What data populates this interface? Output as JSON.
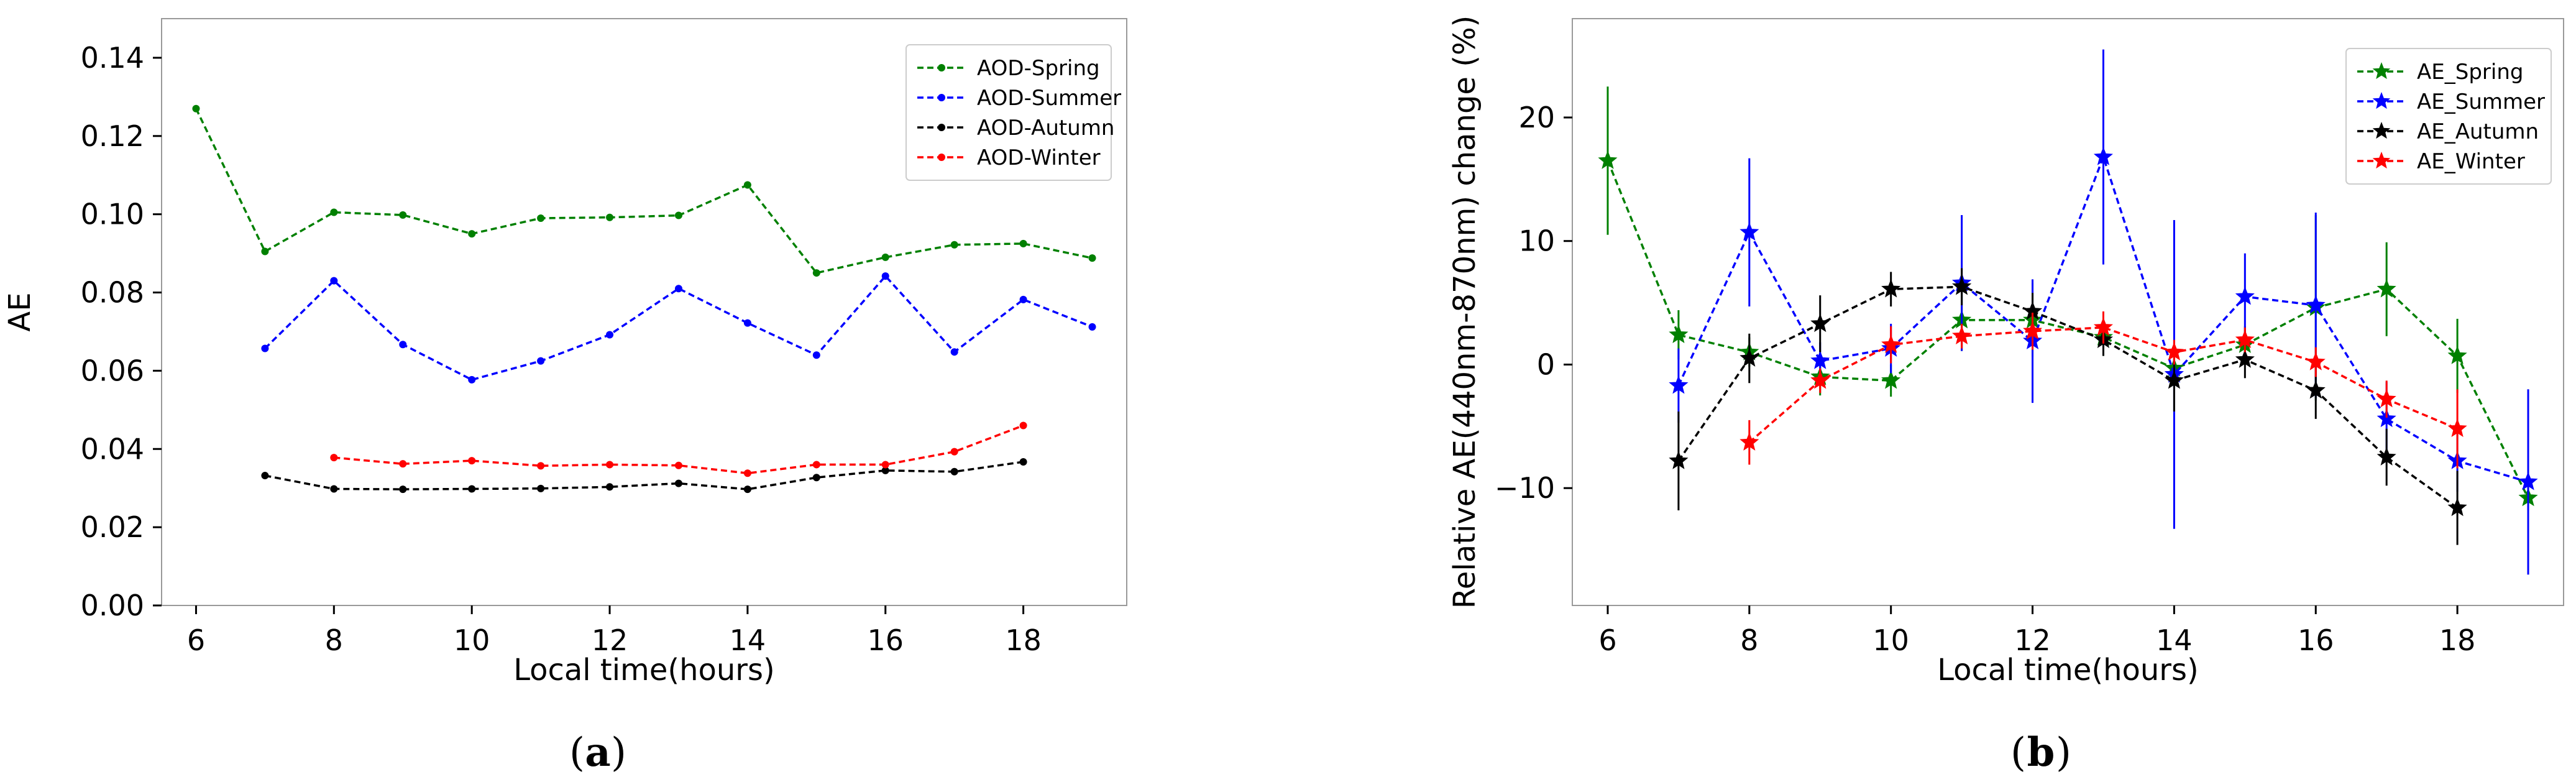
{
  "panels": [
    {
      "caption_label": "a",
      "legend_position": "top-right"
    },
    {
      "caption_label": "b",
      "legend_position": "top-right"
    }
  ],
  "chart_data": [
    {
      "type": "line",
      "title": "",
      "xlabel": "Local time(hours)",
      "ylabel": "AE",
      "xlim": [
        5.5,
        19.5
      ],
      "ylim": [
        0.0,
        0.15
      ],
      "xticks": [
        6,
        8,
        10,
        12,
        14,
        16,
        18
      ],
      "yticks": [
        0.0,
        0.02,
        0.04,
        0.06,
        0.08,
        0.1,
        0.12,
        0.14
      ],
      "ytick_labels": [
        "0.00",
        "0.02",
        "0.04",
        "0.06",
        "0.08",
        "0.10",
        "0.12",
        "0.14"
      ],
      "grid": false,
      "legend_position": "top-right",
      "series": [
        {
          "name": "AOD-Spring",
          "color": "#008000",
          "marker": "dot",
          "x": [
            6,
            7,
            8,
            9,
            10,
            11,
            12,
            13,
            14,
            15,
            16,
            17,
            18,
            19
          ],
          "y": [
            0.127,
            0.0905,
            0.1005,
            0.0998,
            0.095,
            0.099,
            0.0992,
            0.0997,
            0.1075,
            0.085,
            0.089,
            0.0922,
            0.0925,
            0.0888
          ]
        },
        {
          "name": "AOD-Summer",
          "color": "#0000ff",
          "marker": "dot",
          "x": [
            7,
            8,
            9,
            10,
            11,
            12,
            13,
            14,
            15,
            16,
            17,
            18,
            19
          ],
          "y": [
            0.0657,
            0.083,
            0.0667,
            0.0577,
            0.0625,
            0.0692,
            0.081,
            0.0722,
            0.064,
            0.0842,
            0.0648,
            0.0782,
            0.0712
          ]
        },
        {
          "name": "AOD-Autumn",
          "color": "#000000",
          "marker": "dot",
          "x": [
            7,
            8,
            9,
            10,
            11,
            12,
            13,
            14,
            15,
            16,
            17,
            18
          ],
          "y": [
            0.0332,
            0.0298,
            0.0297,
            0.0298,
            0.0299,
            0.0303,
            0.0312,
            0.0297,
            0.0327,
            0.0345,
            0.0342,
            0.0367
          ]
        },
        {
          "name": "AOD-Winter",
          "color": "#ff0000",
          "marker": "dot",
          "x": [
            8,
            9,
            10,
            11,
            12,
            13,
            14,
            15,
            16,
            17,
            18
          ],
          "y": [
            0.0378,
            0.0362,
            0.037,
            0.0357,
            0.036,
            0.0358,
            0.0338,
            0.036,
            0.036,
            0.0393,
            0.046
          ]
        }
      ]
    },
    {
      "type": "line",
      "title": "",
      "xlabel": "Local time(hours)",
      "ylabel": "Relative AE(440nm-870nm) change (%)",
      "xlim": [
        5.5,
        19.5
      ],
      "ylim": [
        -19.5,
        28.0
      ],
      "xticks": [
        6,
        8,
        10,
        12,
        14,
        16,
        18
      ],
      "yticks": [
        -10,
        0,
        10,
        20
      ],
      "ytick_labels": [
        "−10",
        "0",
        "10",
        "20"
      ],
      "grid": false,
      "legend_position": "top-right",
      "series": [
        {
          "name": "AE_Spring",
          "color": "#008000",
          "marker": "star",
          "x": [
            6,
            7,
            8,
            9,
            10,
            11,
            12,
            13,
            14,
            15,
            16,
            17,
            18,
            19
          ],
          "y": [
            16.5,
            2.4,
            1.0,
            -1.0,
            -1.3,
            3.6,
            3.6,
            2.2,
            -0.3,
            1.6,
            4.6,
            6.1,
            0.7,
            -10.8
          ],
          "err": [
            6.0,
            2.0,
            1.2,
            1.5,
            1.3,
            2.5,
            3.0,
            1.5,
            1.5,
            1.5,
            7.5,
            3.8,
            3.0,
            1.0
          ]
        },
        {
          "name": "AE_Summer",
          "color": "#0000ff",
          "marker": "star",
          "x": [
            7,
            8,
            9,
            10,
            11,
            12,
            13,
            14,
            15,
            16,
            17,
            18,
            19
          ],
          "y": [
            -1.7,
            10.7,
            0.3,
            1.3,
            6.6,
            1.9,
            16.8,
            -0.8,
            5.5,
            4.8,
            -4.4,
            -7.8,
            -9.5
          ],
          "err": [
            3.0,
            6.0,
            1.5,
            2.0,
            5.5,
            5.0,
            8.7,
            12.5,
            3.5,
            7.5,
            3.0,
            2.5,
            7.5
          ]
        },
        {
          "name": "AE_Autumn",
          "color": "#000000",
          "marker": "star",
          "x": [
            7,
            8,
            9,
            10,
            11,
            12,
            13,
            14,
            15,
            16,
            17,
            18
          ],
          "y": [
            -7.8,
            0.5,
            3.3,
            6.1,
            6.3,
            4.3,
            2.0,
            -1.3,
            0.4,
            -2.1,
            -7.5,
            -11.6
          ],
          "err": [
            4.0,
            2.0,
            2.3,
            1.4,
            1.5,
            1.5,
            1.3,
            2.5,
            1.5,
            2.3,
            2.3,
            3.0
          ]
        },
        {
          "name": "AE_Winter",
          "color": "#ff0000",
          "marker": "star",
          "x": [
            8,
            9,
            10,
            11,
            12,
            13,
            14,
            15,
            16,
            17,
            18
          ],
          "y": [
            -6.3,
            -1.3,
            1.6,
            2.3,
            2.7,
            3.0,
            1.0,
            2.0,
            0.2,
            -2.8,
            -5.2
          ],
          "err": [
            1.8,
            1.0,
            1.5,
            1.0,
            1.5,
            1.3,
            1.0,
            1.0,
            1.2,
            1.5,
            3.2
          ]
        }
      ]
    }
  ]
}
